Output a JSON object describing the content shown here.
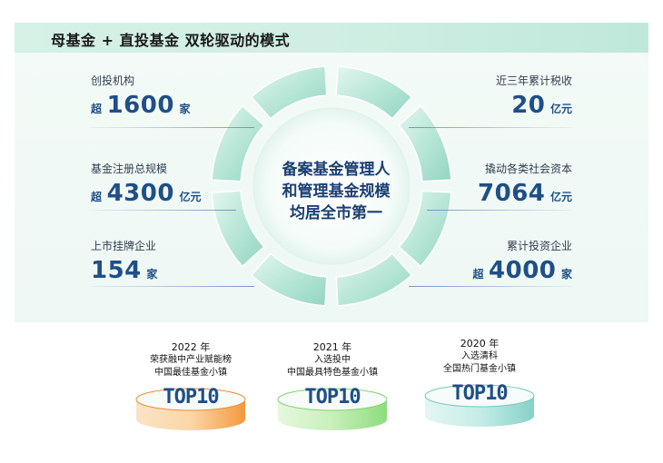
{
  "header": {
    "title": "母基金 + 直投基金 双轮驱动的模式"
  },
  "center": {
    "lines": [
      "备案基金管理人",
      "和管理基金规模",
      "均居全市第一"
    ]
  },
  "stats_left": [
    {
      "label": "创投机构",
      "prefix": "超",
      "value": "1600",
      "unit": "家"
    },
    {
      "label": "基金注册总规模",
      "prefix": "超",
      "value": "4300",
      "unit": "亿元"
    },
    {
      "label": "上市挂牌企业",
      "prefix": "",
      "value": "154",
      "unit": "家"
    }
  ],
  "stats_right": [
    {
      "label": "近三年累计税收",
      "prefix": "",
      "value": "20",
      "unit": "亿元"
    },
    {
      "label": "撬动各类社会资本",
      "prefix": "",
      "value": "7064",
      "unit": "亿元"
    },
    {
      "label": "累计投资企业",
      "prefix": "超",
      "value": "4000",
      "unit": "家"
    }
  ],
  "awards": [
    {
      "year": "2022 年",
      "line1": "荣获融中产业赋能榜",
      "line2": "中国最佳基金小镇",
      "badge": "TOP10",
      "color": "#f5a04a"
    },
    {
      "year": "2021 年",
      "line1": "入选投中",
      "line2": "中国最具特色基金小镇",
      "badge": "TOP10",
      "color": "#9ee08a"
    },
    {
      "year": "2020 年",
      "line1": "入选清科",
      "line2": "全国热门基金小镇",
      "badge": "TOP10",
      "color": "#8fd6cf"
    }
  ],
  "colors": {
    "accent": "#1f4f86",
    "ring": "#a8e0d0",
    "header_bg": "#d6f1e6"
  }
}
